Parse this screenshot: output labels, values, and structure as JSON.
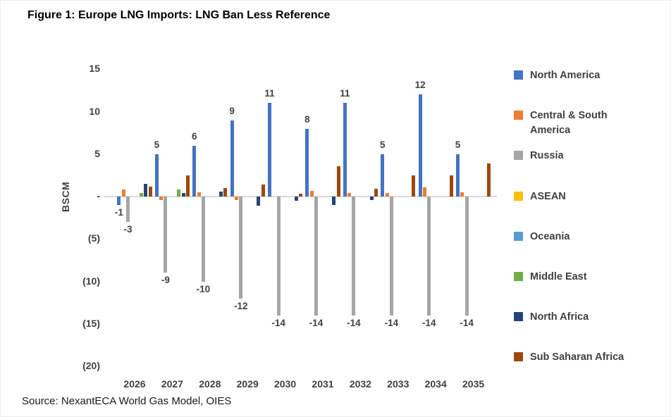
{
  "page": {
    "title": "Figure 1: Europe LNG Imports: LNG Ban Less Reference",
    "source": "Source: NexantECA World Gas Model, OIES"
  },
  "chart_data": {
    "type": "bar",
    "title": "Figure 1: Europe LNG Imports: LNG Ban Less Reference",
    "xlabel": "",
    "ylabel": "BSCM",
    "ylim": [
      -20,
      15
    ],
    "grid": false,
    "legend_position": "right",
    "ytick_values": [
      15,
      10,
      5,
      0,
      -5,
      -10,
      -15,
      -20
    ],
    "ytick_labels": [
      "15",
      "10",
      "5",
      "-",
      "(5)",
      "(10)",
      "(15)",
      "(20)"
    ],
    "categories": [
      "2026",
      "2027",
      "2028",
      "2029",
      "2030",
      "2031",
      "2032",
      "2033",
      "2034",
      "2035"
    ],
    "series": [
      {
        "name": "North America",
        "color": "#4472C4",
        "show_labels": true,
        "values": [
          -1,
          5,
          6,
          9,
          11,
          8,
          11,
          5,
          12,
          5
        ]
      },
      {
        "name": "Central & South America",
        "color": "#ED7D31",
        "show_labels": false,
        "values": [
          0.8,
          -0.4,
          0.5,
          -0.4,
          0,
          0.7,
          0.4,
          0.4,
          1.1,
          0.5
        ]
      },
      {
        "name": "Russia",
        "color": "#A5A5A5",
        "show_labels": true,
        "values": [
          -3,
          -9,
          -10,
          -12,
          -14,
          -14,
          -14,
          -14,
          -14,
          -14
        ]
      },
      {
        "name": "ASEAN",
        "color": "#FFC000",
        "show_labels": false,
        "values": [
          0,
          0,
          0,
          0,
          0,
          0,
          0,
          0,
          0,
          0
        ]
      },
      {
        "name": "Oceania",
        "color": "#5B9BD5",
        "show_labels": false,
        "values": [
          0,
          0,
          0,
          0,
          0,
          0,
          0,
          0,
          0,
          0
        ]
      },
      {
        "name": "Middle East",
        "color": "#70AD47",
        "show_labels": false,
        "values": [
          0.4,
          0.8,
          0,
          0,
          0,
          0,
          0,
          0,
          0,
          0
        ]
      },
      {
        "name": "North Africa",
        "color": "#264478",
        "show_labels": false,
        "values": [
          1.5,
          0.4,
          0.6,
          -1.1,
          -0.5,
          -1.0,
          -0.4,
          0,
          0,
          0
        ]
      },
      {
        "name": "Sub Saharan Africa",
        "color": "#9E480E",
        "show_labels": false,
        "values": [
          1.2,
          2.5,
          1.0,
          1.4,
          0.3,
          3.6,
          0.9,
          2.5,
          2.5,
          3.9
        ]
      }
    ]
  }
}
